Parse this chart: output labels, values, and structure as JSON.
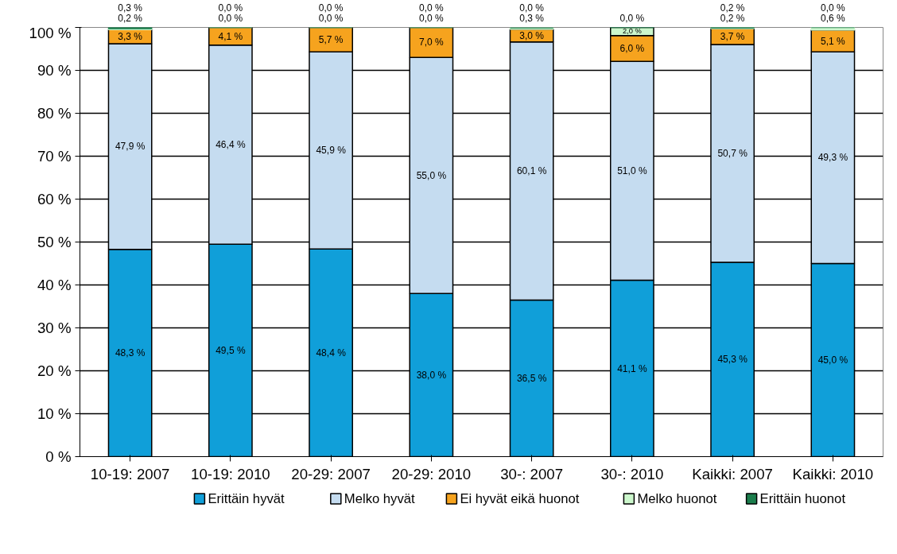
{
  "chart_data": {
    "type": "bar",
    "stacked": true,
    "categories": [
      "10-19: 2007",
      "10-19: 2010",
      "20-29: 2007",
      "20-29: 2010",
      "30-: 2007",
      "30-: 2010",
      "Kaikki: 2007",
      "Kaikki: 2010"
    ],
    "series": [
      {
        "name": "Erittäin hyvät",
        "color": "#109fd9",
        "values": [
          48.3,
          49.5,
          48.4,
          38.0,
          36.5,
          41.1,
          45.3,
          45.0
        ],
        "value_labels": [
          "48,3 %",
          "49,5 %",
          "48,4 %",
          "38,0 %",
          "36,5 %",
          "41,1 %",
          "45,3 %",
          "45,0 %"
        ]
      },
      {
        "name": "Melko hyvät",
        "color": "#c5dcf0",
        "values": [
          47.9,
          46.4,
          45.9,
          55.0,
          60.1,
          51.0,
          50.7,
          49.3
        ],
        "value_labels": [
          "47,9 %",
          "46,4 %",
          "45,9 %",
          "55,0 %",
          "60,1 %",
          "51,0 %",
          "50,7 %",
          "49,3 %"
        ]
      },
      {
        "name": "Ei hyvät eikä huonot",
        "color": "#f6a31e",
        "values": [
          3.3,
          4.1,
          5.7,
          7.0,
          3.0,
          6.0,
          3.7,
          5.1
        ],
        "value_labels": [
          "3,3 %",
          "4,1 %",
          "5,7 %",
          "7,0 %",
          "3,0 %",
          "6,0 %",
          "3,7 %",
          "5,1 %"
        ]
      },
      {
        "name": "Melko huonot",
        "color": "#ccf7cc",
        "values": [
          0.2,
          0.0,
          0.0,
          0.0,
          0.3,
          2.0,
          0.2,
          0.6
        ],
        "value_labels": [
          "0,2 %",
          "0,0 %",
          "0,0 %",
          "0,0 %",
          "0,3 %",
          "2,0 %",
          "0,2 %",
          "0,6 %"
        ]
      },
      {
        "name": "Erittäin huonot",
        "color": "#1b7d4c",
        "values": [
          0.3,
          0.0,
          0.0,
          0.0,
          0.0,
          0.0,
          0.2,
          0.0
        ],
        "value_labels": [
          "0,3 %",
          "0,0 %",
          "0,0 %",
          "0,0 %",
          "0,0 %",
          "0,0 %",
          "0,2 %",
          "0,0 %"
        ]
      }
    ],
    "ylim": [
      0,
      100
    ],
    "yticks": [
      {
        "value": 0,
        "label": "0 %"
      },
      {
        "value": 10,
        "label": "10 %"
      },
      {
        "value": 20,
        "label": "20 %"
      },
      {
        "value": 30,
        "label": "30 %"
      },
      {
        "value": 40,
        "label": "40 %"
      },
      {
        "value": 50,
        "label": "50 %"
      },
      {
        "value": 60,
        "label": "60 %"
      },
      {
        "value": 70,
        "label": "70 %"
      },
      {
        "value": 80,
        "label": "80 %"
      },
      {
        "value": 90,
        "label": "90 %"
      },
      {
        "value": 100,
        "label": "100 %"
      }
    ],
    "grid": "y",
    "legend": "bottom"
  }
}
